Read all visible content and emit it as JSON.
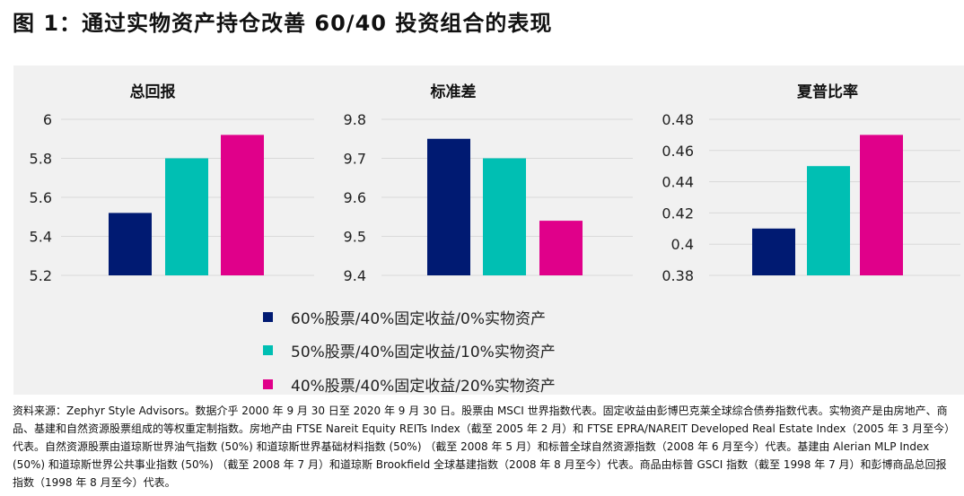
{
  "title": "图 1：通过实物资产持仓改善 60/40 投资组合的表现",
  "legend": [
    {
      "label": "60%股票/40%固定收益/0%实物资产",
      "color": "#001a72"
    },
    {
      "label": "50%股票/40%固定收益/10%实物资产",
      "color": "#00bfb3"
    },
    {
      "label": "40%股票/40%固定收益/20%实物资产",
      "color": "#e0008a"
    }
  ],
  "chart_data": [
    {
      "type": "bar",
      "title": "总回报",
      "categories": [
        "60%股票/40%固定收益/0%实物资产",
        "50%股票/40%固定收益/10%实物资产",
        "40%股票/40%固定收益/20%实物资产"
      ],
      "values": [
        5.52,
        5.8,
        5.92
      ],
      "ylim": [
        5.2,
        6
      ],
      "yticks": [
        "5.2",
        "5.4",
        "5.6",
        "5.8",
        "6"
      ],
      "grid": true
    },
    {
      "type": "bar",
      "title": "标准差",
      "categories": [
        "60%股票/40%固定收益/0%实物资产",
        "50%股票/40%固定收益/10%实物资产",
        "40%股票/40%固定收益/20%实物资产"
      ],
      "values": [
        9.75,
        9.7,
        9.54
      ],
      "ylim": [
        9.4,
        9.8
      ],
      "yticks": [
        "9.4",
        "9.5",
        "9.6",
        "9.7",
        "9.8"
      ],
      "grid": true
    },
    {
      "type": "bar",
      "title": "夏普比率",
      "categories": [
        "60%股票/40%固定收益/0%实物资产",
        "50%股票/40%固定收益/10%实物资产",
        "40%股票/40%固定收益/20%实物资产"
      ],
      "values": [
        0.41,
        0.45,
        0.47
      ],
      "ylim": [
        0.38,
        0.48
      ],
      "yticks": [
        "0.38",
        "0.4",
        "0.42",
        "0.44",
        "0.46",
        "0.48"
      ],
      "grid": true
    }
  ],
  "note": "资料来源：Zephyr Style Advisors。数据介乎 2000 年 9 月 30 日至 2020 年 9 月 30 日。股票由 MSCI 世界指数代表。固定收益由彭博巴克莱全球综合债券指数代表。实物资产是由房地产、商品、基建和自然资源股票组成的等权重定制指数。房地产由 FTSE Nareit Equity REITs Index（截至 2005 年 2 月）和 FTSE EPRA/NAREIT Developed Real Estate Index（2005 年 3 月至今）代表。自然资源股票由道琼斯世界油气指数 (50%) 和道琼斯世界基础材料指数 (50%) （截至 2008 年 5 月）和标普全球自然资源指数（2008 年 6 月至今）代表。基建由 Alerian MLP Index (50%) 和道琼斯世界公共事业指数 (50%) （截至 2008 年 7 月）和道琼斯 Brookfield 全球基建指数（2008 年 8 月至今）代表。商品由标普 GSCI 指数（截至 1998 年 7 月）和彭博商品总回报指数（1998 年 8 月至今）代表。"
}
